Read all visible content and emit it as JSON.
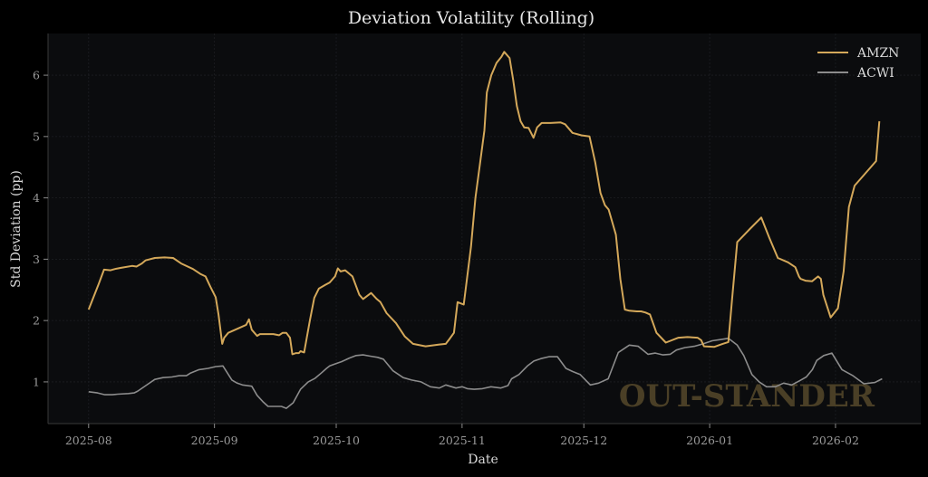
{
  "chart_data": {
    "type": "line",
    "title": "Deviation Volatility (Rolling)",
    "xlabel": "Date",
    "ylabel": "Std Deviation (pp)",
    "x_ticks": [
      "2025-08",
      "2025-09",
      "2025-10",
      "2025-11",
      "2025-12",
      "2026-01",
      "2026-02"
    ],
    "y_ticks": [
      1,
      2,
      3,
      4,
      5,
      6
    ],
    "ylim": [
      0.32,
      6.68
    ],
    "xlim_days": [
      -10,
      205
    ],
    "x_origin": "2025-08-01",
    "grid": true,
    "legend_position": "top-right",
    "watermark": "OUT-STANDER",
    "colors": {
      "background": "#000000",
      "plot_background": "#0b0c0e",
      "grid": "#1c1e22",
      "axis": "#3a3a3a",
      "AMZN": "#d4a85a",
      "ACWI": "#8c8c8c"
    },
    "series": [
      {
        "name": "AMZN",
        "days": [
          0,
          2.5,
          3.8,
          5.4,
          6.5,
          8,
          10.7,
          11.8,
          13.1,
          14,
          16.3,
          18.7,
          20.8,
          22.8,
          25.7,
          27.5,
          28.8,
          30,
          31.3,
          32,
          32.9,
          33.4,
          34.4,
          36.1,
          38.8,
          39.5,
          40.2,
          41.5,
          42.2,
          44.4,
          45.5,
          46.9,
          47.8,
          48.7,
          49.6,
          50.2,
          51.1,
          51.8,
          52.2,
          53.1,
          54.5,
          55.6,
          56.7,
          58.3,
          59.4,
          60.7,
          61.4,
          62.1,
          63.2,
          65,
          66.7,
          67.6,
          69.6,
          71,
          71.9,
          73.4,
          75.7,
          77.9,
          79.9,
          83,
          86.4,
          88,
          88.9,
          90,
          90.9,
          92.4,
          94.2,
          95.3,
          96.4,
          97.5,
          98.1,
          99.2,
          100.5,
          101.7,
          102.4,
          103.7,
          104.6,
          105.5,
          106.4,
          107.3,
          108.4,
          109.6,
          110.5,
          111.6,
          113.8,
          116.3,
          117.4,
          119.2,
          121.4,
          123.4,
          124.8,
          126.1,
          127.2,
          128.1,
          129.9,
          131,
          132.1,
          133.2,
          135,
          136.1,
          137.2,
          138.3,
          139.9,
          142.2,
          145.3,
          147.5,
          150,
          150.9,
          151.6,
          154.1,
          156.2,
          157.6,
          158.5,
          159.8,
          163,
          165.7,
          167.7,
          169.8,
          172.3,
          174.1,
          175,
          175.4,
          176.6,
          178.2,
          179.7,
          180.4,
          181,
          182.8,
          184.6,
          186,
          187.3,
          188.7,
          194,
          194.8
        ],
        "values": [
          2.18,
          2.6,
          2.83,
          2.82,
          2.84,
          2.86,
          2.89,
          2.88,
          2.93,
          2.98,
          3.02,
          3.03,
          3.02,
          2.93,
          2.84,
          2.76,
          2.72,
          2.55,
          2.38,
          2.1,
          1.62,
          1.72,
          1.8,
          1.85,
          1.93,
          2.02,
          1.85,
          1.75,
          1.78,
          1.78,
          1.78,
          1.76,
          1.8,
          1.8,
          1.72,
          1.45,
          1.47,
          1.47,
          1.5,
          1.48,
          2.0,
          2.37,
          2.52,
          2.58,
          2.62,
          2.72,
          2.85,
          2.8,
          2.82,
          2.72,
          2.42,
          2.35,
          2.45,
          2.35,
          2.3,
          2.12,
          1.96,
          1.74,
          1.62,
          1.58,
          1.61,
          1.62,
          1.7,
          1.8,
          2.3,
          2.26,
          3.2,
          4.0,
          4.55,
          5.1,
          5.72,
          6.0,
          6.2,
          6.3,
          6.38,
          6.28,
          5.92,
          5.5,
          5.25,
          5.15,
          5.14,
          4.98,
          5.15,
          5.22,
          5.22,
          5.23,
          5.2,
          5.06,
          5.02,
          5.0,
          4.58,
          4.08,
          3.88,
          3.81,
          3.4,
          2.68,
          2.18,
          2.16,
          2.15,
          2.15,
          2.13,
          2.1,
          1.8,
          1.64,
          1.72,
          1.73,
          1.72,
          1.68,
          1.58,
          1.57,
          1.62,
          1.65,
          2.33,
          3.28,
          3.5,
          3.68,
          3.35,
          3.02,
          2.95,
          2.87,
          2.72,
          2.68,
          2.65,
          2.64,
          2.72,
          2.68,
          2.42,
          2.05,
          2.2,
          2.8,
          3.85,
          4.2,
          4.6,
          5.25
        ]
      },
      {
        "name": "ACWI",
        "days": [
          0,
          2.2,
          4,
          5.8,
          7.1,
          9.8,
          11.2,
          12.1,
          14.1,
          16.3,
          18.3,
          20.5,
          22.3,
          24.1,
          25,
          27.2,
          29.4,
          31.3,
          33.1,
          35.3,
          36.6,
          37.9,
          40.2,
          41.5,
          42.9,
          44.2,
          46,
          47.5,
          48.7,
          50.4,
          52.2,
          54.1,
          55.8,
          57.4,
          58.6,
          59.4,
          61,
          62.3,
          64.3,
          65.9,
          67.6,
          69.4,
          71.2,
          72.6,
          75,
          77.5,
          79.6,
          81.9,
          84.2,
          86.4,
          88,
          90.5,
          92,
          93.3,
          95,
          97,
          99.1,
          101.5,
          103.3,
          104.2,
          106,
          108.1,
          109.7,
          111.4,
          113.4,
          115.5,
          117.6,
          119.2,
          121.1,
          123.6,
          125.6,
          128,
          130.5,
          133.2,
          135.4,
          137.8,
          139.6,
          141.5,
          143.3,
          144.8,
          146.9,
          149.2,
          151.4,
          153.6,
          155.6,
          157.6,
          159.8,
          161.4,
          163.4,
          165.2,
          167,
          169.2,
          171.2,
          173.2,
          175.2,
          176.8,
          178.3,
          179.4,
          181.1,
          183.1,
          185.6,
          188.3,
          191,
          193.7,
          195.5
        ],
        "values": [
          0.84,
          0.82,
          0.79,
          0.79,
          0.8,
          0.81,
          0.82,
          0.85,
          0.94,
          1.04,
          1.07,
          1.08,
          1.1,
          1.1,
          1.14,
          1.2,
          1.22,
          1.25,
          1.26,
          1.03,
          0.98,
          0.95,
          0.93,
          0.78,
          0.68,
          0.6,
          0.6,
          0.6,
          0.57,
          0.66,
          0.88,
          1.0,
          1.06,
          1.15,
          1.22,
          1.26,
          1.3,
          1.33,
          1.39,
          1.43,
          1.44,
          1.42,
          1.4,
          1.37,
          1.18,
          1.07,
          1.03,
          1.0,
          0.92,
          0.9,
          0.95,
          0.9,
          0.92,
          0.89,
          0.88,
          0.89,
          0.92,
          0.9,
          0.94,
          1.05,
          1.12,
          1.26,
          1.34,
          1.38,
          1.41,
          1.41,
          1.22,
          1.17,
          1.12,
          0.95,
          0.98,
          1.05,
          1.48,
          1.6,
          1.58,
          1.45,
          1.47,
          1.44,
          1.45,
          1.52,
          1.56,
          1.58,
          1.62,
          1.67,
          1.69,
          1.71,
          1.6,
          1.43,
          1.12,
          1.0,
          0.92,
          0.92,
          0.98,
          0.95,
          1.02,
          1.08,
          1.2,
          1.35,
          1.43,
          1.47,
          1.2,
          1.1,
          0.97,
          0.99,
          1.05
        ]
      }
    ]
  }
}
